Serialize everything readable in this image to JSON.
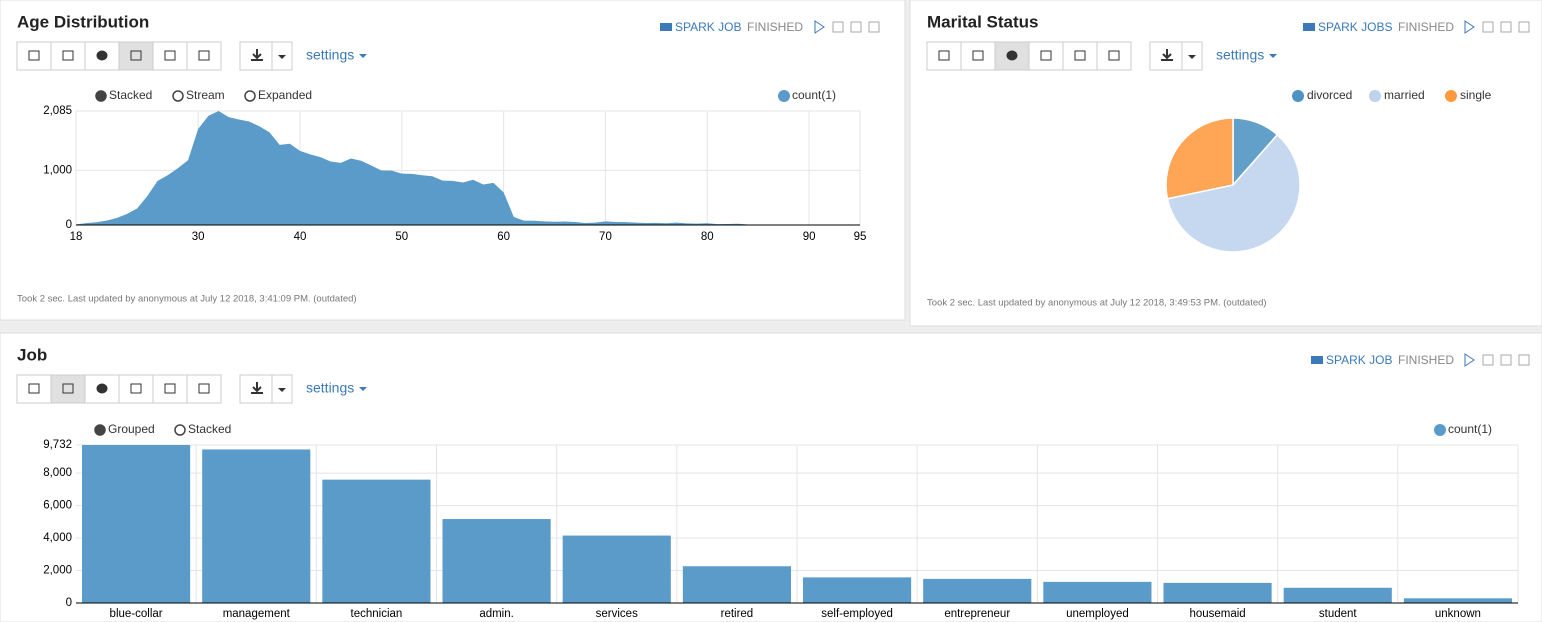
{
  "chart_data": [
    {
      "type": "area",
      "title": "Age Distribution",
      "job_label": "SPARK JOB",
      "status": "FINISHED",
      "settings": "settings",
      "modes": [
        "Stacked",
        "Stream",
        "Expanded"
      ],
      "footer": "Took 2 sec. Last updated by anonymous at July 12 2018, 3:41:09 PM. (outdated)",
      "x": [
        18,
        19,
        20,
        21,
        22,
        23,
        24,
        25,
        26,
        27,
        28,
        29,
        30,
        31,
        32,
        33,
        34,
        35,
        36,
        37,
        38,
        39,
        40,
        41,
        42,
        43,
        44,
        45,
        46,
        47,
        48,
        49,
        50,
        51,
        52,
        53,
        54,
        55,
        56,
        57,
        58,
        59,
        60,
        61,
        62,
        63,
        64,
        65,
        66,
        67,
        68,
        69,
        70,
        71,
        72,
        73,
        74,
        75,
        76,
        77,
        78,
        79,
        80,
        81,
        82,
        83,
        84,
        85,
        86,
        87,
        88,
        89,
        90,
        92,
        93,
        94,
        95
      ],
      "series": [
        {
          "name": "count(1)",
          "color": "#5b9bc9",
          "values": [
            12,
            35,
            50,
            79,
            129,
            202,
            302,
            527,
            805,
            909,
            1038,
            1185,
            1757,
            1996,
            2085,
            1972,
            1930,
            1894,
            1806,
            1696,
            1466,
            1487,
            1355,
            1291,
            1242,
            1161,
            1136,
            1216,
            1175,
            1088,
            997,
            994,
            939,
            936,
            911,
            891,
            811,
            806,
            778,
            828,
            740,
            770,
            596,
            147,
            80,
            77,
            66,
            59,
            63,
            54,
            36,
            44,
            67,
            54,
            52,
            44,
            37,
            39,
            32,
            44,
            30,
            25,
            31,
            17,
            19,
            22,
            9,
            5,
            9,
            4,
            2,
            3,
            2,
            2,
            2,
            1,
            2
          ]
        }
      ],
      "xlim": [
        18,
        95
      ],
      "xticks": [
        18,
        30,
        40,
        50,
        60,
        70,
        80,
        90,
        95
      ],
      "ylim": [
        0,
        2085
      ],
      "yticks": [
        0,
        {
          "value": 1000,
          "label": "1,000"
        },
        {
          "value": 2085,
          "label": "2,085"
        }
      ],
      "grid": true
    },
    {
      "type": "pie",
      "title": "Marital Status",
      "job_label": "SPARK JOBS",
      "status": "FINISHED",
      "settings": "settings",
      "footer": "Took 2 sec. Last updated by anonymous at July 12 2018, 3:49:53 PM. (outdated)",
      "categories": [
        "divorced",
        "married",
        "single"
      ],
      "values": [
        5207,
        27214,
        12790
      ],
      "colors": [
        "#1f77b4",
        "#aec7e8",
        "#ff7f0e"
      ]
    },
    {
      "type": "bar",
      "title": "Job",
      "job_label": "SPARK JOB",
      "status": "FINISHED",
      "settings": "settings",
      "modes": [
        "Grouped",
        "Stacked"
      ],
      "categories": [
        "blue-collar",
        "management",
        "technician",
        "admin.",
        "services",
        "retired",
        "self-employed",
        "entrepreneur",
        "unemployed",
        "housemaid",
        "student",
        "unknown"
      ],
      "series": [
        {
          "name": "count(1)",
          "color": "#5b9bc9",
          "values": [
            9732,
            9458,
            7597,
            5171,
            4154,
            2264,
            1579,
            1487,
            1303,
            1240,
            938,
            288
          ]
        }
      ],
      "ylim": [
        0,
        9732
      ],
      "yticks": [
        0,
        {
          "value": 2000,
          "label": "2,000"
        },
        {
          "value": 4000,
          "label": "4,000"
        },
        {
          "value": 6000,
          "label": "6,000"
        },
        {
          "value": 8000,
          "label": "8,000"
        },
        {
          "value": 9732,
          "label": "9,732"
        }
      ],
      "grid": true
    }
  ]
}
